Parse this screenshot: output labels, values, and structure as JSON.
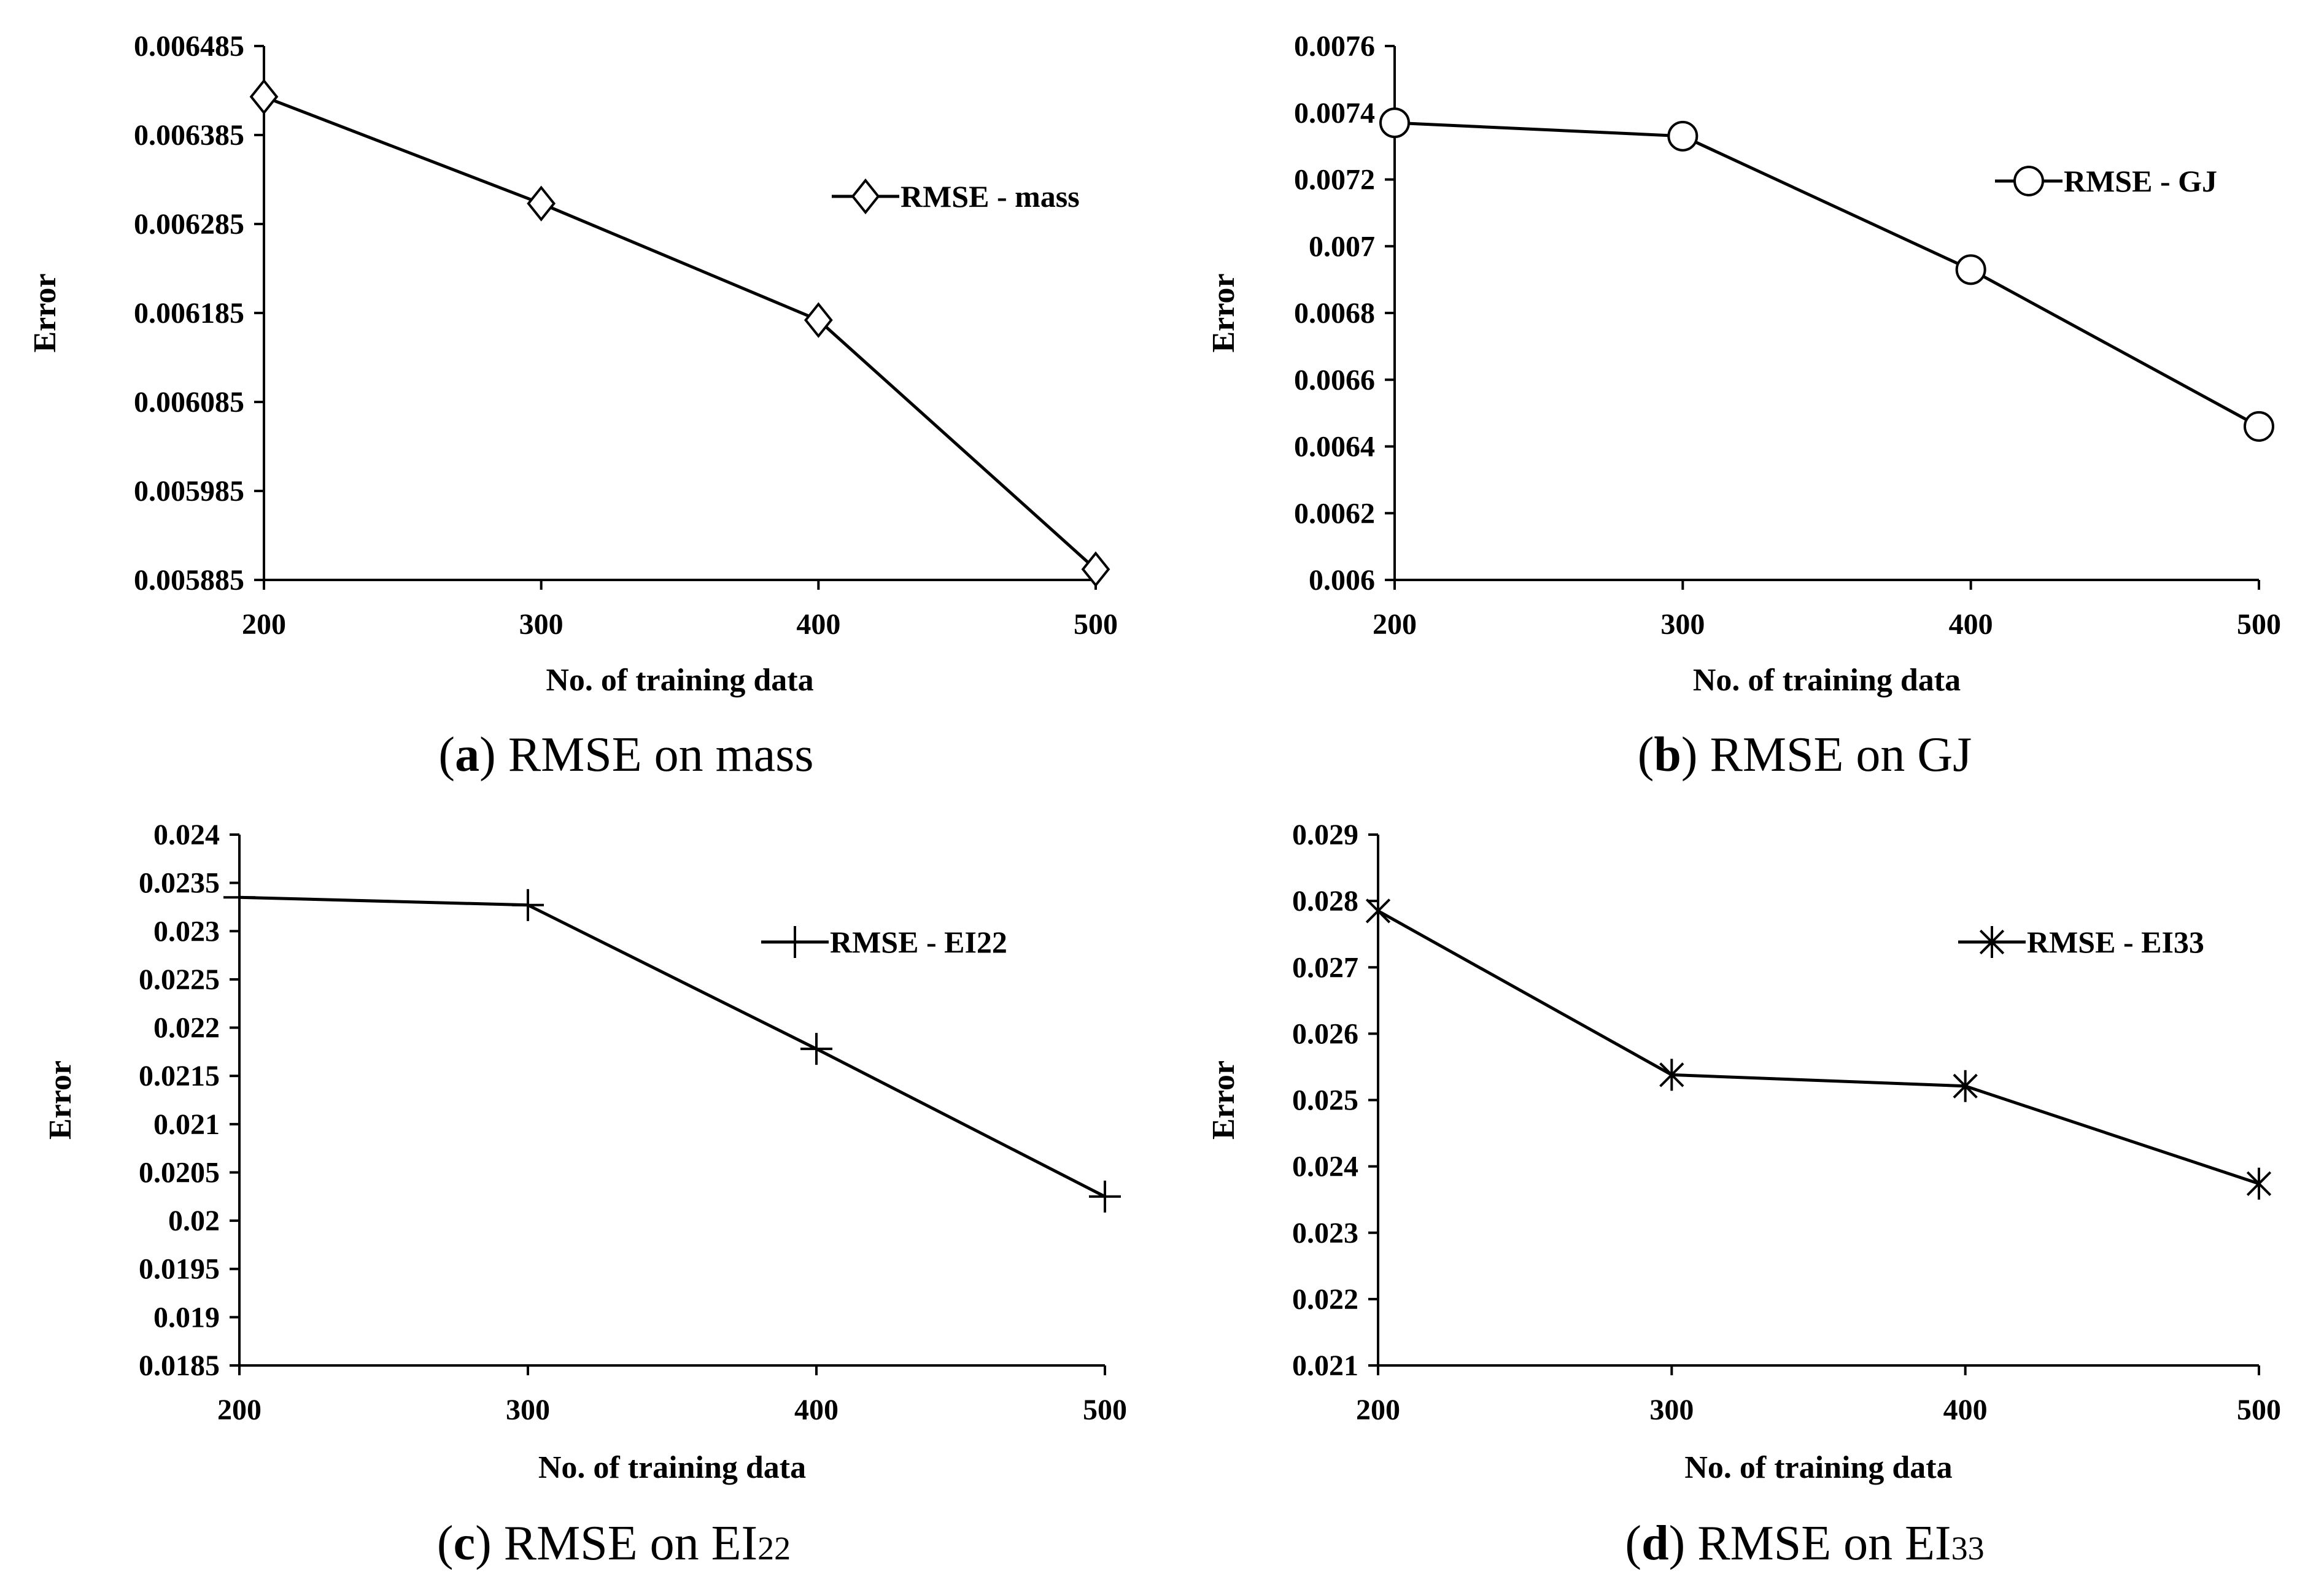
{
  "chart_data": [
    {
      "id": "a",
      "type": "line",
      "title": "",
      "caption": {
        "letter": "a",
        "text": "RMSE on mass",
        "subscript": ""
      },
      "xlabel": "No. of training data",
      "ylabel": "Error",
      "x": [
        200,
        300,
        400,
        500
      ],
      "xticks": [
        "200",
        "300",
        "400",
        "500"
      ],
      "ylim": [
        0.005885,
        0.006485
      ],
      "yticks": [
        0.005885,
        0.005985,
        0.006085,
        0.006185,
        0.006285,
        0.006385,
        0.006485
      ],
      "ytick_labels": [
        "0.005885",
        "0.005985",
        "0.006085",
        "0.006185",
        "0.006285",
        "0.006385",
        "0.006485"
      ],
      "series": [
        {
          "name": "RMSE - mass",
          "marker": "diamond",
          "values": [
            0.006428,
            0.006308,
            0.006177,
            0.005897
          ]
        }
      ],
      "legend_position": "top-right",
      "grid": false
    },
    {
      "id": "b",
      "type": "line",
      "title": "",
      "caption": {
        "letter": "b",
        "text": "RMSE on GJ",
        "subscript": ""
      },
      "xlabel": "No. of training data",
      "ylabel": "Error",
      "x": [
        200,
        300,
        400,
        500
      ],
      "xticks": [
        "200",
        "300",
        "400",
        "500"
      ],
      "ylim": [
        0.006,
        0.0076
      ],
      "yticks": [
        0.006,
        0.0062,
        0.0064,
        0.0066,
        0.0068,
        0.007,
        0.0072,
        0.0074,
        0.0076
      ],
      "ytick_labels": [
        "0.006",
        "0.0062",
        "0.0064",
        "0.0066",
        "0.0068",
        "0.007",
        "0.0072",
        "0.0074",
        "0.0076"
      ],
      "series": [
        {
          "name": "RMSE - GJ",
          "marker": "circle",
          "values": [
            0.00737,
            0.00733,
            0.00693,
            0.00646
          ]
        }
      ],
      "legend_position": "top-right",
      "grid": false
    },
    {
      "id": "c",
      "type": "line",
      "title": "",
      "caption": {
        "letter": "c",
        "text": "RMSE on EI",
        "subscript": "22"
      },
      "xlabel": "No. of training data",
      "ylabel": "Error",
      "x": [
        200,
        300,
        400,
        500
      ],
      "xticks": [
        "200",
        "300",
        "400",
        "500"
      ],
      "ylim": [
        0.0185,
        0.024
      ],
      "yticks": [
        0.0185,
        0.019,
        0.0195,
        0.02,
        0.0205,
        0.021,
        0.0215,
        0.022,
        0.0225,
        0.023,
        0.0235,
        0.024
      ],
      "ytick_labels": [
        "0.0185",
        "0.019",
        "0.0195",
        "0.02",
        "0.0205",
        "0.021",
        "0.0215",
        "0.022",
        "0.0225",
        "0.023",
        "0.0235",
        "0.024"
      ],
      "series": [
        {
          "name": "RMSE - EI22",
          "marker": "plus",
          "values": [
            0.02335,
            0.02327,
            0.02178,
            0.02025
          ]
        }
      ],
      "legend_position": "top-right",
      "grid": false
    },
    {
      "id": "d",
      "type": "line",
      "title": "",
      "caption": {
        "letter": "d",
        "text": "RMSE on EI",
        "subscript": "33"
      },
      "xlabel": "No. of training data",
      "ylabel": "Error",
      "x": [
        200,
        300,
        400,
        500
      ],
      "xticks": [
        "200",
        "300",
        "400",
        "500"
      ],
      "ylim": [
        0.021,
        0.029
      ],
      "yticks": [
        0.021,
        0.022,
        0.023,
        0.024,
        0.025,
        0.026,
        0.027,
        0.028,
        0.029
      ],
      "ytick_labels": [
        "0.021",
        "0.022",
        "0.023",
        "0.024",
        "0.025",
        "0.026",
        "0.027",
        "0.028",
        "0.029"
      ],
      "series": [
        {
          "name": "RMSE - EI33",
          "marker": "asterisk",
          "values": [
            0.02785,
            0.02538,
            0.02521,
            0.02374
          ]
        }
      ],
      "legend_position": "top-right",
      "grid": false
    }
  ]
}
